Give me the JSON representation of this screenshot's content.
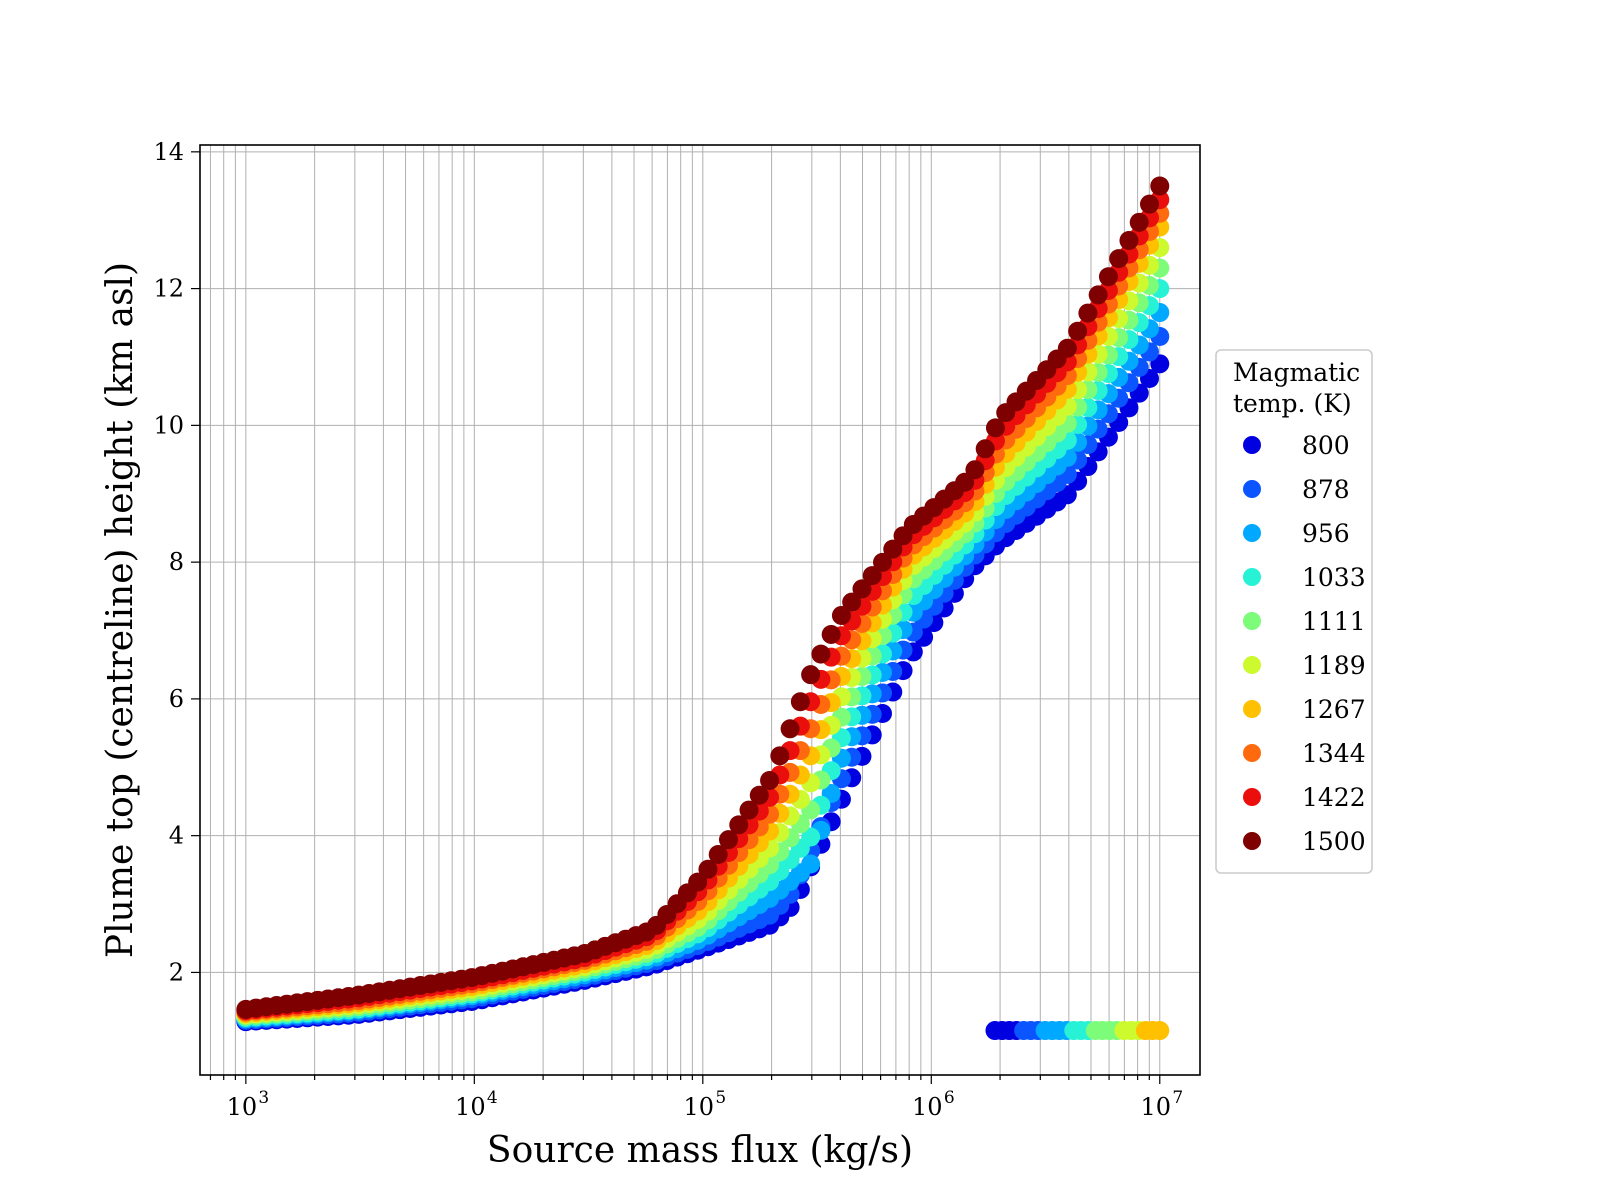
{
  "chart_data": {
    "type": "scatter",
    "title": "",
    "xlabel": "Source mass flux (kg/s)",
    "ylabel": "Plume top (centreline) height (km asl)",
    "xscale": "log",
    "xlim": [
      630,
      15000000
    ],
    "ylim": [
      0.5,
      14.1
    ],
    "x_tick_labels": [
      "10",
      "10",
      "10",
      "10",
      "10"
    ],
    "x_tick_exponents": [
      "3",
      "4",
      "5",
      "6",
      "7"
    ],
    "x_ticks": [
      1000,
      10000,
      100000,
      1000000,
      10000000
    ],
    "y_ticks": [
      2,
      4,
      6,
      8,
      10,
      12,
      14
    ],
    "y_tick_labels": [
      "2",
      "4",
      "6",
      "8",
      "10",
      "12",
      "14"
    ],
    "grid": true,
    "legend": {
      "title_line1": "Magmatic",
      "title_line2": "temp. (K)",
      "placement": "outside-right",
      "items": [
        {
          "label": "800",
          "color": "#0000e0"
        },
        {
          "label": "878",
          "color": "#0a55ff"
        },
        {
          "label": "956",
          "color": "#00a8ff"
        },
        {
          "label": "1033",
          "color": "#27f2d6"
        },
        {
          "label": "1111",
          "color": "#7dfc7a"
        },
        {
          "label": "1189",
          "color": "#ccfa2e"
        },
        {
          "label": "1267",
          "color": "#ffc000"
        },
        {
          "label": "1344",
          "color": "#ff6a0e"
        },
        {
          "label": "1422",
          "color": "#ea0f0c"
        },
        {
          "label": "1500",
          "color": "#7f0000"
        }
      ]
    },
    "series": [
      {
        "name": "800",
        "x": [
          1000,
          3000,
          10000,
          30000,
          60000,
          100000,
          200000,
          250000,
          400000,
          800000,
          1500000,
          2000000,
          4000000,
          10000000
        ],
        "y": [
          1.28,
          1.38,
          1.58,
          1.88,
          2.1,
          2.35,
          2.7,
          3.0,
          4.5,
          6.6,
          7.9,
          8.3,
          9.0,
          10.9
        ]
      },
      {
        "name": "878",
        "x": [
          1000,
          3000,
          10000,
          30000,
          60000,
          100000,
          200000,
          250000,
          400000,
          800000,
          1500000,
          2000000,
          4000000,
          10000000
        ],
        "y": [
          1.3,
          1.41,
          1.62,
          1.92,
          2.15,
          2.42,
          2.85,
          3.2,
          4.8,
          6.9,
          8.05,
          8.5,
          9.3,
          11.3
        ]
      },
      {
        "name": "956",
        "x": [
          1000,
          3000,
          10000,
          30000,
          60000,
          100000,
          200000,
          300000,
          400000,
          800000,
          1500000,
          2000000,
          4000000,
          10000000
        ],
        "y": [
          1.32,
          1.44,
          1.66,
          1.96,
          2.2,
          2.5,
          3.1,
          3.6,
          5.1,
          7.2,
          8.2,
          8.7,
          9.55,
          11.65
        ]
      },
      {
        "name": "1033",
        "x": [
          1000,
          3000,
          10000,
          30000,
          60000,
          100000,
          200000,
          300000,
          400000,
          800000,
          1500000,
          2000000,
          4000000,
          10000000
        ],
        "y": [
          1.34,
          1.46,
          1.69,
          2.0,
          2.25,
          2.6,
          3.35,
          4.0,
          5.4,
          7.45,
          8.35,
          8.9,
          9.8,
          12.0
        ]
      },
      {
        "name": "1111",
        "x": [
          1000,
          3000,
          10000,
          30000,
          60000,
          100000,
          200000,
          300000,
          400000,
          800000,
          1500000,
          2000000,
          4000000,
          10000000
        ],
        "y": [
          1.36,
          1.49,
          1.72,
          2.04,
          2.3,
          2.7,
          3.6,
          4.4,
          5.7,
          7.7,
          8.5,
          9.1,
          10.05,
          12.3
        ]
      },
      {
        "name": "1189",
        "x": [
          1000,
          3000,
          10000,
          30000,
          60000,
          100000,
          200000,
          300000,
          400000,
          800000,
          1500000,
          2000000,
          4000000,
          10000000
        ],
        "y": [
          1.38,
          1.52,
          1.76,
          2.08,
          2.36,
          2.82,
          3.85,
          4.8,
          6.0,
          7.9,
          8.65,
          9.3,
          10.3,
          12.6
        ]
      },
      {
        "name": "1267",
        "x": [
          1000,
          3000,
          10000,
          30000,
          60000,
          100000,
          200000,
          300000,
          400000,
          800000,
          1500000,
          2000000,
          4000000,
          10000000
        ],
        "y": [
          1.4,
          1.55,
          1.8,
          2.12,
          2.42,
          2.95,
          4.1,
          5.2,
          6.3,
          8.05,
          8.8,
          9.5,
          10.55,
          12.9
        ]
      },
      {
        "name": "1344",
        "x": [
          1000,
          3000,
          10000,
          30000,
          60000,
          100000,
          200000,
          300000,
          400000,
          800000,
          1500000,
          2000000,
          4000000,
          10000000
        ],
        "y": [
          1.42,
          1.58,
          1.84,
          2.17,
          2.48,
          3.1,
          4.35,
          5.6,
          6.6,
          8.2,
          8.95,
          9.7,
          10.75,
          13.1
        ]
      },
      {
        "name": "1422",
        "x": [
          1000,
          3000,
          10000,
          30000,
          60000,
          100000,
          200000,
          300000,
          400000,
          800000,
          1500000,
          2000000,
          4000000,
          10000000
        ],
        "y": [
          1.44,
          1.62,
          1.88,
          2.21,
          2.55,
          3.25,
          4.6,
          6.0,
          6.9,
          8.35,
          9.1,
          9.9,
          10.95,
          13.3
        ]
      },
      {
        "name": "1500",
        "x": [
          1000,
          3000,
          10000,
          30000,
          60000,
          100000,
          200000,
          300000,
          400000,
          800000,
          1500000,
          2000000,
          4000000,
          10000000
        ],
        "y": [
          1.46,
          1.66,
          1.93,
          2.27,
          2.62,
          3.4,
          4.85,
          6.4,
          7.2,
          8.5,
          9.25,
          10.1,
          11.15,
          13.5
        ]
      }
    ],
    "secondary_branch": {
      "x_start": 1900000,
      "x_end": 10000000,
      "y": 1.15,
      "colors_low_to_high_x": [
        "#0000e0",
        "#0a55ff",
        "#00a8ff",
        "#27f2d6",
        "#7dfc7a",
        "#ccfa2e",
        "#ffc000"
      ]
    }
  }
}
